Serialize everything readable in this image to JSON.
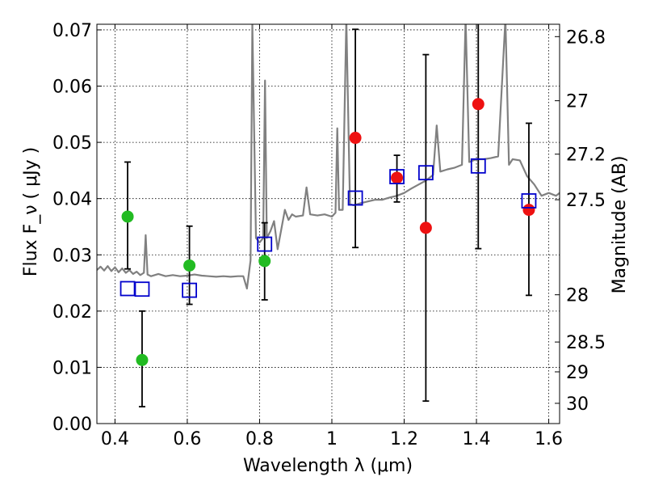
{
  "chart_data": {
    "type": "scatter",
    "xlabel": "Wavelength  λ (μm)",
    "ylabel": "Flux  F_ν  ( μJy )",
    "ylabel_right": "Magnitude (AB)",
    "xlim": [
      0.35,
      1.63
    ],
    "ylim": [
      0.0,
      0.071
    ],
    "grid": true,
    "x_ticks": [
      0.4,
      0.6,
      0.8,
      1.0,
      1.2,
      1.4,
      1.6
    ],
    "x_tick_labels": [
      "0.4",
      "0.6",
      "0.8",
      "1",
      "1.2",
      "1.4",
      "1.6"
    ],
    "y_ticks": [
      0.0,
      0.01,
      0.02,
      0.03,
      0.04,
      0.05,
      0.06,
      0.07
    ],
    "y_tick_labels": [
      "0.00",
      "0.01",
      "0.02",
      "0.03",
      "0.04",
      "0.05",
      "0.06",
      "0.07"
    ],
    "right_ticks": [
      {
        "flux": 0.0688,
        "label": "26.8"
      },
      {
        "flux": 0.0574,
        "label": "27"
      },
      {
        "flux": 0.0479,
        "label": "27.2"
      },
      {
        "flux": 0.0398,
        "label": "27.5"
      },
      {
        "flux": 0.0229,
        "label": "28"
      },
      {
        "flux": 0.0145,
        "label": "28.5"
      },
      {
        "flux": 0.0092,
        "label": "29"
      },
      {
        "flux": 0.0036,
        "label": "30"
      }
    ],
    "series": [
      {
        "marker": "circle",
        "color": "#22bb22",
        "points": [
          {
            "x": 0.435,
            "y": 0.0368,
            "err_lo": 0.0275,
            "err_hi": 0.0465
          },
          {
            "x": 0.475,
            "y": 0.0113,
            "err_lo": 0.003,
            "err_hi": 0.02
          },
          {
            "x": 0.606,
            "y": 0.0281,
            "err_lo": 0.0212,
            "err_hi": 0.0351
          },
          {
            "x": 0.814,
            "y": 0.0289,
            "err_lo": 0.022,
            "err_hi": 0.0357
          }
        ]
      },
      {
        "marker": "circle",
        "color": "#ee1111",
        "points": [
          {
            "x": 1.065,
            "y": 0.0508,
            "err_lo": 0.0313,
            "err_hi": 0.0701
          },
          {
            "x": 1.18,
            "y": 0.0437,
            "err_lo": 0.0394,
            "err_hi": 0.0477
          },
          {
            "x": 1.26,
            "y": 0.0348,
            "err_lo": 0.004,
            "err_hi": 0.0656
          },
          {
            "x": 1.405,
            "y": 0.0568,
            "err_lo": 0.0311,
            "err_hi": 0.0745
          },
          {
            "x": 1.545,
            "y": 0.038,
            "err_lo": 0.0228,
            "err_hi": 0.0534
          }
        ]
      },
      {
        "marker": "square",
        "color": "#0000cc",
        "points": [
          {
            "x": 0.435,
            "y": 0.024
          },
          {
            "x": 0.475,
            "y": 0.0239
          },
          {
            "x": 0.606,
            "y": 0.0237
          },
          {
            "x": 0.814,
            "y": 0.0319
          },
          {
            "x": 1.065,
            "y": 0.0401
          },
          {
            "x": 1.18,
            "y": 0.0439
          },
          {
            "x": 1.26,
            "y": 0.0446
          },
          {
            "x": 1.405,
            "y": 0.0458
          },
          {
            "x": 1.545,
            "y": 0.0396
          }
        ]
      },
      {
        "type": "line",
        "color": "#808080",
        "points": [
          [
            0.35,
            0.0273
          ],
          [
            0.36,
            0.0279
          ],
          [
            0.37,
            0.0272
          ],
          [
            0.38,
            0.028
          ],
          [
            0.39,
            0.0271
          ],
          [
            0.4,
            0.0278
          ],
          [
            0.41,
            0.0269
          ],
          [
            0.42,
            0.0276
          ],
          [
            0.43,
            0.0268
          ],
          [
            0.44,
            0.0273
          ],
          [
            0.45,
            0.0266
          ],
          [
            0.46,
            0.027
          ],
          [
            0.47,
            0.0264
          ],
          [
            0.48,
            0.0268
          ],
          [
            0.485,
            0.0335
          ],
          [
            0.49,
            0.0265
          ],
          [
            0.5,
            0.0262
          ],
          [
            0.52,
            0.0266
          ],
          [
            0.54,
            0.0262
          ],
          [
            0.56,
            0.0264
          ],
          [
            0.58,
            0.0262
          ],
          [
            0.6,
            0.0263
          ],
          [
            0.62,
            0.0265
          ],
          [
            0.64,
            0.0263
          ],
          [
            0.66,
            0.0262
          ],
          [
            0.68,
            0.0261
          ],
          [
            0.7,
            0.0262
          ],
          [
            0.72,
            0.0261
          ],
          [
            0.74,
            0.0262
          ],
          [
            0.755,
            0.0262
          ],
          [
            0.765,
            0.024
          ],
          [
            0.775,
            0.029
          ],
          [
            0.78,
            0.071
          ],
          [
            0.79,
            0.033
          ],
          [
            0.8,
            0.0322
          ],
          [
            0.81,
            0.033
          ],
          [
            0.815,
            0.061
          ],
          [
            0.82,
            0.033
          ],
          [
            0.83,
            0.0342
          ],
          [
            0.84,
            0.036
          ],
          [
            0.85,
            0.031
          ],
          [
            0.86,
            0.0345
          ],
          [
            0.87,
            0.038
          ],
          [
            0.88,
            0.0362
          ],
          [
            0.89,
            0.0372
          ],
          [
            0.9,
            0.0368
          ],
          [
            0.92,
            0.037
          ],
          [
            0.93,
            0.042
          ],
          [
            0.94,
            0.0372
          ],
          [
            0.96,
            0.037
          ],
          [
            0.98,
            0.0372
          ],
          [
            1.0,
            0.0368
          ],
          [
            1.01,
            0.0375
          ],
          [
            1.015,
            0.0525
          ],
          [
            1.02,
            0.038
          ],
          [
            1.03,
            0.038
          ],
          [
            1.04,
            0.072
          ],
          [
            1.05,
            0.039
          ],
          [
            1.06,
            0.0388
          ],
          [
            1.08,
            0.0392
          ],
          [
            1.1,
            0.0395
          ],
          [
            1.12,
            0.0398
          ],
          [
            1.14,
            0.0398
          ],
          [
            1.16,
            0.0402
          ],
          [
            1.18,
            0.0405
          ],
          [
            1.2,
            0.041
          ],
          [
            1.22,
            0.0418
          ],
          [
            1.24,
            0.0425
          ],
          [
            1.26,
            0.0432
          ],
          [
            1.28,
            0.0442
          ],
          [
            1.29,
            0.053
          ],
          [
            1.3,
            0.0448
          ],
          [
            1.32,
            0.0452
          ],
          [
            1.34,
            0.0455
          ],
          [
            1.36,
            0.046
          ],
          [
            1.37,
            0.072
          ],
          [
            1.38,
            0.0465
          ],
          [
            1.4,
            0.047
          ],
          [
            1.42,
            0.047
          ],
          [
            1.44,
            0.0472
          ],
          [
            1.46,
            0.0475
          ],
          [
            1.48,
            0.072
          ],
          [
            1.49,
            0.046
          ],
          [
            1.5,
            0.047
          ],
          [
            1.52,
            0.0468
          ],
          [
            1.54,
            0.044
          ],
          [
            1.56,
            0.0425
          ],
          [
            1.58,
            0.0405
          ],
          [
            1.6,
            0.041
          ],
          [
            1.62,
            0.0405
          ],
          [
            1.63,
            0.041
          ]
        ]
      }
    ]
  }
}
